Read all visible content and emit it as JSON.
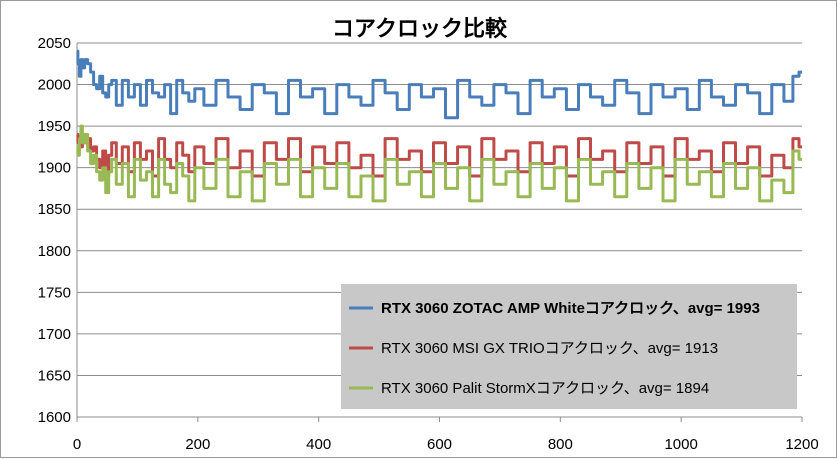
{
  "chart_data": {
    "type": "line",
    "title": "コアクロック比較",
    "xlabel": "",
    "ylabel": "",
    "xlim": [
      0,
      1200
    ],
    "ylim": [
      1600,
      2050
    ],
    "x_ticks": [
      0,
      200,
      400,
      600,
      800,
      1000,
      1200
    ],
    "y_ticks": [
      1600,
      1650,
      1700,
      1750,
      1800,
      1850,
      1900,
      1950,
      2000,
      2050
    ],
    "grid": true,
    "legend_position": "bottom-right",
    "series": [
      {
        "name": "RTX 3060 ZOTAC AMP Whiteコアクロック、avg= 1993",
        "color": "#4a7ebb",
        "bold": true,
        "x": [
          0,
          3,
          5,
          8,
          10,
          15,
          20,
          25,
          30,
          35,
          40,
          45,
          50,
          55,
          60,
          70,
          80,
          90,
          100,
          110,
          120,
          130,
          140,
          150,
          160,
          170,
          180,
          190,
          200,
          220,
          240,
          260,
          280,
          300,
          320,
          340,
          360,
          380,
          400,
          420,
          440,
          460,
          480,
          500,
          520,
          540,
          560,
          580,
          600,
          620,
          640,
          660,
          680,
          700,
          720,
          740,
          760,
          780,
          800,
          820,
          840,
          860,
          880,
          900,
          920,
          940,
          960,
          980,
          1000,
          1020,
          1040,
          1060,
          1080,
          1100,
          1120,
          1140,
          1160,
          1180,
          1190,
          1200
        ],
        "y": [
          2040,
          2025,
          2010,
          2030,
          2020,
          2030,
          2025,
          2015,
          2000,
          1995,
          2010,
          1990,
          1985,
          2000,
          2005,
          1975,
          2005,
          1985,
          2000,
          1975,
          2005,
          1990,
          1985,
          2000,
          1965,
          2005,
          1990,
          1980,
          1995,
          1975,
          2005,
          1985,
          1970,
          2000,
          1990,
          1965,
          2005,
          1985,
          1995,
          1965,
          2000,
          1985,
          1975,
          2005,
          1990,
          1970,
          2000,
          1985,
          1995,
          1960,
          2005,
          1985,
          1975,
          2000,
          1990,
          1965,
          2005,
          1985,
          1995,
          1970,
          2000,
          1985,
          1975,
          2005,
          1990,
          1965,
          2000,
          1985,
          1995,
          1970,
          2005,
          1985,
          1975,
          2000,
          1990,
          1965,
          2000,
          1980,
          2010,
          2015
        ]
      },
      {
        "name": "RTX 3060 MSI GX TRIOコアクロック、avg= 1913",
        "color": "#be4b48",
        "bold": false,
        "x": [
          0,
          3,
          5,
          8,
          10,
          15,
          20,
          25,
          30,
          35,
          40,
          45,
          50,
          55,
          60,
          70,
          80,
          90,
          100,
          110,
          120,
          130,
          140,
          150,
          160,
          170,
          180,
          190,
          200,
          220,
          240,
          260,
          280,
          300,
          320,
          340,
          360,
          380,
          400,
          420,
          440,
          460,
          480,
          500,
          520,
          540,
          560,
          580,
          600,
          620,
          640,
          660,
          680,
          700,
          720,
          740,
          760,
          780,
          800,
          820,
          840,
          860,
          880,
          900,
          920,
          940,
          960,
          980,
          1000,
          1020,
          1040,
          1060,
          1080,
          1100,
          1120,
          1140,
          1160,
          1180,
          1190,
          1200
        ],
        "y": [
          1940,
          1930,
          1935,
          1925,
          1940,
          1930,
          1935,
          1920,
          1925,
          1910,
          1900,
          1920,
          1890,
          1915,
          1930,
          1905,
          1925,
          1895,
          1930,
          1910,
          1920,
          1890,
          1935,
          1910,
          1900,
          1930,
          1915,
          1895,
          1925,
          1905,
          1935,
          1900,
          1920,
          1890,
          1930,
          1910,
          1935,
          1895,
          1925,
          1905,
          1930,
          1900,
          1915,
          1890,
          1935,
          1910,
          1920,
          1895,
          1930,
          1905,
          1925,
          1890,
          1935,
          1910,
          1920,
          1895,
          1930,
          1905,
          1925,
          1890,
          1935,
          1910,
          1920,
          1895,
          1930,
          1905,
          1925,
          1890,
          1935,
          1910,
          1920,
          1895,
          1930,
          1905,
          1925,
          1890,
          1915,
          1900,
          1935,
          1925
        ]
      },
      {
        "name": "RTX 3060 Palit StormXコアクロック、avg= 1894",
        "color": "#98b954",
        "bold": false,
        "x": [
          0,
          3,
          5,
          8,
          10,
          15,
          20,
          25,
          30,
          35,
          40,
          45,
          50,
          55,
          60,
          70,
          80,
          90,
          100,
          110,
          120,
          130,
          140,
          150,
          160,
          170,
          180,
          190,
          200,
          220,
          240,
          260,
          280,
          300,
          320,
          340,
          360,
          380,
          400,
          420,
          440,
          460,
          480,
          500,
          520,
          540,
          560,
          580,
          600,
          620,
          640,
          660,
          680,
          700,
          720,
          740,
          760,
          780,
          800,
          820,
          840,
          860,
          880,
          900,
          920,
          940,
          960,
          980,
          1000,
          1020,
          1040,
          1060,
          1080,
          1100,
          1120,
          1140,
          1160,
          1180,
          1190,
          1200
        ],
        "y": [
          1925,
          1915,
          1935,
          1950,
          1930,
          1940,
          1920,
          1905,
          1915,
          1895,
          1885,
          1900,
          1870,
          1895,
          1910,
          1880,
          1905,
          1865,
          1910,
          1885,
          1895,
          1865,
          1910,
          1880,
          1870,
          1905,
          1890,
          1860,
          1900,
          1875,
          1910,
          1865,
          1895,
          1860,
          1905,
          1880,
          1910,
          1865,
          1900,
          1875,
          1905,
          1865,
          1890,
          1860,
          1910,
          1880,
          1895,
          1865,
          1905,
          1875,
          1900,
          1860,
          1910,
          1880,
          1895,
          1865,
          1905,
          1875,
          1900,
          1860,
          1910,
          1880,
          1895,
          1865,
          1905,
          1875,
          1900,
          1860,
          1910,
          1880,
          1895,
          1865,
          1905,
          1875,
          1900,
          1860,
          1885,
          1870,
          1920,
          1910
        ]
      }
    ]
  }
}
